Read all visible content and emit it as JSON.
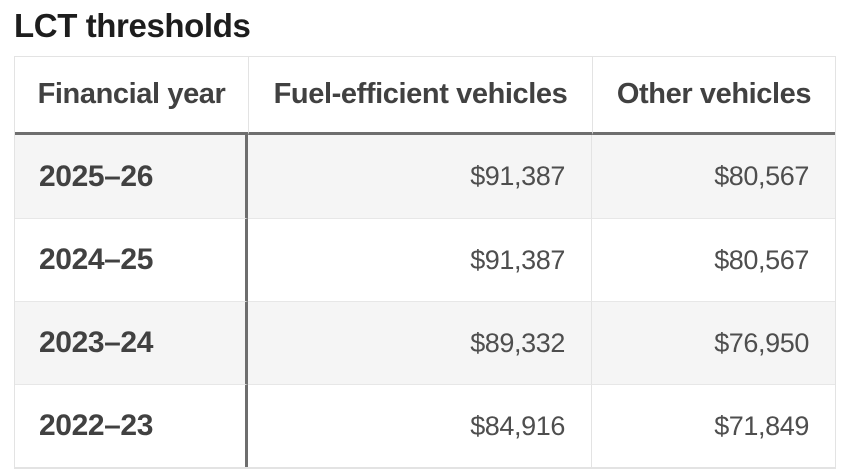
{
  "title": "LCT thresholds",
  "table": {
    "columns": {
      "financial_year": "Financial year",
      "fuel_efficient": "Fuel-efficient vehicles",
      "other": "Other vehicles"
    },
    "rows": [
      {
        "financial_year": "2025–26",
        "fuel_efficient": "$91,387",
        "other": "$80,567"
      },
      {
        "financial_year": "2024–25",
        "fuel_efficient": "$91,387",
        "other": "$80,567"
      },
      {
        "financial_year": "2023–24",
        "fuel_efficient": "$89,332",
        "other": "$76,950"
      },
      {
        "financial_year": "2022–23",
        "fuel_efficient": "$84,916",
        "other": "$71,849"
      }
    ]
  },
  "colors": {
    "title_text": "#1d1d1d",
    "header_text": "#414141",
    "year_text": "#414141",
    "value_text": "#4e4e4e",
    "stripe_background": "#f5f5f5",
    "light_border": "#e3e3e3",
    "dark_border": "#6e6e6e"
  }
}
